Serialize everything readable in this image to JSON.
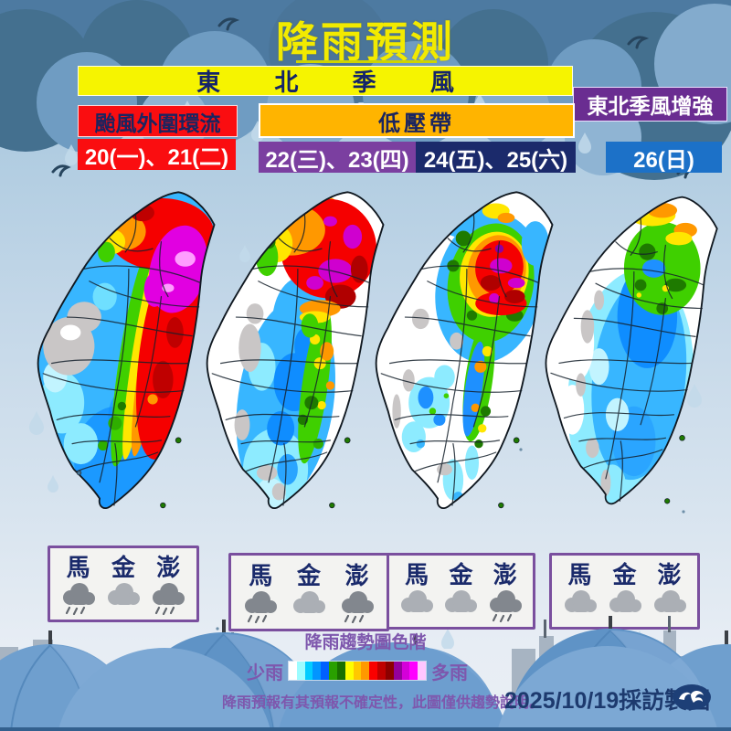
{
  "title": "降雨預測",
  "banners": {
    "monsoon": "東 北 季 風",
    "typhoon": "颱風外圍環流",
    "low_pressure": "低壓帶",
    "monsoon_strengthen": "東北季風增強"
  },
  "dates": [
    {
      "label": "20(一)、21(二)",
      "color": "#fa0d10"
    },
    {
      "label": "22(三)、23(四)",
      "color": "#7b3fa0"
    },
    {
      "label": "24(五)、25(六)",
      "color": "#1b2a6b"
    },
    {
      "label": "26(日)",
      "color": "#1c71c8"
    }
  ],
  "maps": [
    {
      "period": "20(一)、21(二)",
      "systems": [
        "東北季風",
        "颱風外圍環流"
      ]
    },
    {
      "period": "22(三)、23(四)",
      "systems": [
        "東北季風",
        "低壓帶"
      ]
    },
    {
      "period": "24(五)、25(六)",
      "systems": [
        "東北季風",
        "低壓帶"
      ]
    },
    {
      "period": "26(日)",
      "systems": [
        "東北季風增強"
      ]
    }
  ],
  "island_boxes": [
    {
      "entries": [
        {
          "name": "馬",
          "weather": "rain"
        },
        {
          "name": "金",
          "weather": "cloud"
        },
        {
          "name": "澎",
          "weather": "rain"
        }
      ]
    },
    {
      "entries": [
        {
          "name": "馬",
          "weather": "rain"
        },
        {
          "name": "金",
          "weather": "cloud"
        },
        {
          "name": "澎",
          "weather": "rain"
        }
      ]
    },
    {
      "entries": [
        {
          "name": "馬",
          "weather": "cloud"
        },
        {
          "name": "金",
          "weather": "cloud"
        },
        {
          "name": "澎",
          "weather": "rain"
        }
      ]
    },
    {
      "entries": [
        {
          "name": "馬",
          "weather": "cloud"
        },
        {
          "name": "金",
          "weather": "cloud"
        },
        {
          "name": "澎",
          "weather": "cloud"
        }
      ]
    }
  ],
  "legend": {
    "title": "降雨趨勢圖色階",
    "less_label": "少雨",
    "more_label": "多雨",
    "colors": [
      "#ffffff",
      "#9cfcff",
      "#01ccff",
      "#0295ff",
      "#0160ff",
      "#29a000",
      "#187000",
      "#fdfd00",
      "#ffc800",
      "#ff9900",
      "#fa0000",
      "#bf0000",
      "#8c0000",
      "#94009c",
      "#d400d9",
      "#ff00ff",
      "#ffc6ff"
    ]
  },
  "footer": {
    "disclaimer": "降雨預報有其預報不確定性，此圖僅供趨勢說明。",
    "credit": "2025/10/19採訪製圖",
    "logo": "cwa-wave-logo"
  },
  "theme": {
    "title_color": "#f2ea00",
    "monsoon_bg": "#f6f400",
    "typhoon_bg": "#fa0d10",
    "low_pressure_bg": "#ffb400",
    "strengthen_bg": "#6a2d91",
    "navy_text": "#1a2a6b",
    "legend_text": "#7e57ad"
  }
}
